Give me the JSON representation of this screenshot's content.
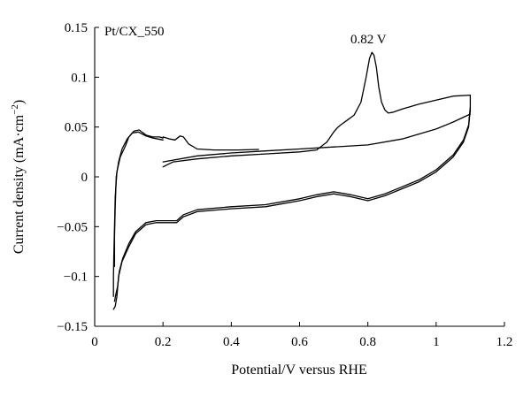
{
  "chart_data": {
    "type": "line",
    "title": "",
    "xlabel": "Potential/V versus RHE",
    "ylabel": "Current density (mA·cm−2)",
    "ylabel_parts": {
      "main": "Current density (mA·cm",
      "sup": "−2",
      "close": ")"
    },
    "xlim": [
      0,
      1.2
    ],
    "ylim": [
      -0.15,
      0.15
    ],
    "x_ticks": [
      0,
      0.2,
      0.4,
      0.6,
      0.8,
      1,
      1.2
    ],
    "x_tick_labels": [
      "0",
      "0.2",
      "0.4",
      "0.6",
      "0.8",
      "1",
      "1.2"
    ],
    "y_ticks": [
      -0.15,
      -0.1,
      -0.05,
      0,
      0.05,
      0.1,
      0.15
    ],
    "y_tick_labels": [
      "−0.15",
      "−0.1",
      "−0.05",
      "0",
      "0.05",
      "0.1",
      "0.15"
    ],
    "grid": false,
    "annotations": [
      {
        "text": "Pt/CX_550",
        "x": 0.02,
        "y": 0.147
      },
      {
        "text": "0.82 V",
        "x": 0.83,
        "y": 0.135
      }
    ],
    "series": [
      {
        "x": [
          0.48,
          0.42,
          0.35,
          0.3,
          0.275,
          0.26,
          0.25,
          0.235,
          0.22,
          0.2
        ],
        "y": [
          0.0275,
          0.027,
          0.027,
          0.028,
          0.033,
          0.04,
          0.041,
          0.037,
          0.038,
          0.04
        ]
      },
      {
        "x": [
          0.2,
          0.19,
          0.17,
          0.15,
          0.13,
          0.115,
          0.1,
          0.09,
          0.075,
          0.065,
          0.06,
          0.058,
          0.056,
          0.055,
          0.055
        ],
        "y": [
          0.039,
          0.04,
          0.04,
          0.042,
          0.047,
          0.046,
          0.04,
          0.031,
          0.02,
          0.005,
          -0.02,
          -0.05,
          -0.08,
          -0.1,
          -0.12
        ]
      },
      {
        "x": [
          0.2,
          0.185,
          0.17,
          0.15,
          0.128,
          0.11,
          0.095,
          0.08,
          0.07,
          0.063,
          0.06,
          0.058,
          0.058
        ],
        "y": [
          0.037,
          0.038,
          0.039,
          0.041,
          0.045,
          0.044,
          0.038,
          0.028,
          0.015,
          0.0,
          -0.03,
          -0.06,
          -0.09
        ]
      },
      {
        "x": [
          0.2,
          0.23,
          0.3,
          0.4,
          0.5,
          0.6,
          0.65,
          0.68,
          0.7,
          0.71,
          0.72,
          0.74,
          0.76,
          0.78,
          0.795,
          0.805,
          0.812,
          0.818,
          0.825,
          0.832,
          0.84,
          0.85,
          0.86,
          0.875,
          0.9,
          0.95,
          1.0,
          1.05,
          1.1,
          1.1
        ],
        "y": [
          0.01,
          0.015,
          0.018,
          0.021,
          0.023,
          0.025,
          0.027,
          0.035,
          0.045,
          0.049,
          0.052,
          0.057,
          0.062,
          0.075,
          0.1,
          0.119,
          0.125,
          0.122,
          0.11,
          0.09,
          0.075,
          0.067,
          0.064,
          0.065,
          0.068,
          0.073,
          0.077,
          0.081,
          0.082,
          0.065
        ]
      },
      {
        "x": [
          0.055,
          0.06,
          0.065,
          0.07,
          0.08,
          0.1,
          0.12,
          0.15,
          0.18,
          0.2,
          0.22,
          0.24,
          0.26,
          0.3,
          0.4,
          0.5,
          0.6,
          0.65,
          0.7,
          0.75,
          0.8,
          0.85,
          0.9,
          0.95,
          1.0,
          1.05,
          1.08,
          1.095,
          1.1
        ],
        "y": [
          -0.133,
          -0.13,
          -0.12,
          -0.1,
          -0.085,
          -0.07,
          -0.057,
          -0.048,
          -0.046,
          -0.046,
          -0.046,
          -0.046,
          -0.04,
          -0.035,
          -0.032,
          -0.03,
          -0.024,
          -0.02,
          -0.017,
          -0.02,
          -0.024,
          -0.019,
          -0.012,
          -0.005,
          0.005,
          0.02,
          0.035,
          0.05,
          0.068
        ]
      },
      {
        "x": [
          0.058,
          0.062,
          0.067,
          0.072,
          0.082,
          0.1,
          0.12,
          0.15,
          0.18,
          0.2,
          0.22,
          0.24,
          0.26,
          0.3,
          0.4,
          0.5,
          0.6,
          0.65,
          0.7,
          0.75,
          0.8,
          0.85,
          0.9,
          0.95,
          1.0,
          1.05,
          1.08,
          1.095,
          1.1
        ],
        "y": [
          -0.125,
          -0.118,
          -0.11,
          -0.095,
          -0.082,
          -0.067,
          -0.055,
          -0.046,
          -0.044,
          -0.044,
          -0.044,
          -0.044,
          -0.038,
          -0.033,
          -0.03,
          -0.028,
          -0.022,
          -0.018,
          -0.015,
          -0.018,
          -0.022,
          -0.017,
          -0.01,
          -0.003,
          0.007,
          0.022,
          0.037,
          0.052,
          0.07
        ]
      },
      {
        "x": [
          0.2,
          0.3,
          0.4,
          0.5,
          0.6,
          0.7,
          0.8,
          0.9,
          1.0,
          1.05,
          1.1
        ],
        "y": [
          0.015,
          0.021,
          0.024,
          0.026,
          0.028,
          0.03,
          0.032,
          0.038,
          0.048,
          0.055,
          0.063
        ]
      }
    ]
  }
}
